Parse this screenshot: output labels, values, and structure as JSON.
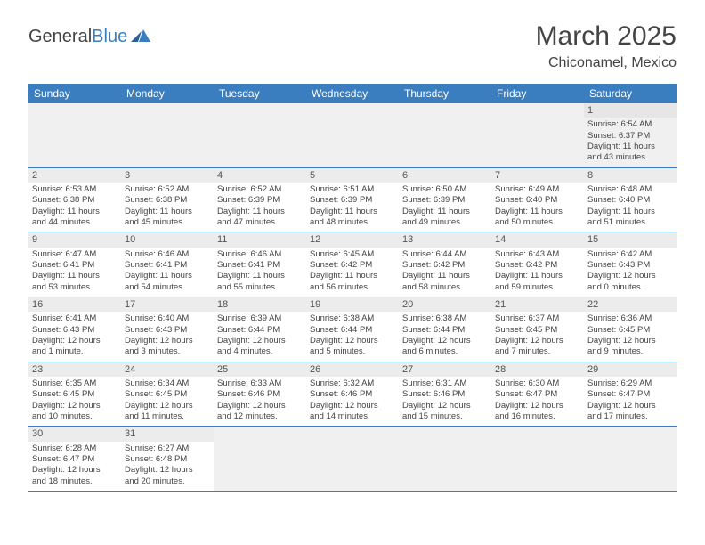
{
  "logo": {
    "part1": "General",
    "part2": "Blue"
  },
  "title": "March 2025",
  "subtitle": "Chiconamel, Mexico",
  "colors": {
    "header_bg": "#3b7ec0",
    "header_text": "#ffffff",
    "cell_border": "#3b7ec0",
    "alt_row_bg": "#f0f0f0",
    "text": "#444444"
  },
  "day_headers": [
    "Sunday",
    "Monday",
    "Tuesday",
    "Wednesday",
    "Thursday",
    "Friday",
    "Saturday"
  ],
  "weeks": [
    [
      null,
      null,
      null,
      null,
      null,
      null,
      {
        "n": "1",
        "sr": "Sunrise: 6:54 AM",
        "ss": "Sunset: 6:37 PM",
        "d1": "Daylight: 11 hours",
        "d2": "and 43 minutes."
      }
    ],
    [
      {
        "n": "2",
        "sr": "Sunrise: 6:53 AM",
        "ss": "Sunset: 6:38 PM",
        "d1": "Daylight: 11 hours",
        "d2": "and 44 minutes."
      },
      {
        "n": "3",
        "sr": "Sunrise: 6:52 AM",
        "ss": "Sunset: 6:38 PM",
        "d1": "Daylight: 11 hours",
        "d2": "and 45 minutes."
      },
      {
        "n": "4",
        "sr": "Sunrise: 6:52 AM",
        "ss": "Sunset: 6:39 PM",
        "d1": "Daylight: 11 hours",
        "d2": "and 47 minutes."
      },
      {
        "n": "5",
        "sr": "Sunrise: 6:51 AM",
        "ss": "Sunset: 6:39 PM",
        "d1": "Daylight: 11 hours",
        "d2": "and 48 minutes."
      },
      {
        "n": "6",
        "sr": "Sunrise: 6:50 AM",
        "ss": "Sunset: 6:39 PM",
        "d1": "Daylight: 11 hours",
        "d2": "and 49 minutes."
      },
      {
        "n": "7",
        "sr": "Sunrise: 6:49 AM",
        "ss": "Sunset: 6:40 PM",
        "d1": "Daylight: 11 hours",
        "d2": "and 50 minutes."
      },
      {
        "n": "8",
        "sr": "Sunrise: 6:48 AM",
        "ss": "Sunset: 6:40 PM",
        "d1": "Daylight: 11 hours",
        "d2": "and 51 minutes."
      }
    ],
    [
      {
        "n": "9",
        "sr": "Sunrise: 6:47 AM",
        "ss": "Sunset: 6:41 PM",
        "d1": "Daylight: 11 hours",
        "d2": "and 53 minutes."
      },
      {
        "n": "10",
        "sr": "Sunrise: 6:46 AM",
        "ss": "Sunset: 6:41 PM",
        "d1": "Daylight: 11 hours",
        "d2": "and 54 minutes."
      },
      {
        "n": "11",
        "sr": "Sunrise: 6:46 AM",
        "ss": "Sunset: 6:41 PM",
        "d1": "Daylight: 11 hours",
        "d2": "and 55 minutes."
      },
      {
        "n": "12",
        "sr": "Sunrise: 6:45 AM",
        "ss": "Sunset: 6:42 PM",
        "d1": "Daylight: 11 hours",
        "d2": "and 56 minutes."
      },
      {
        "n": "13",
        "sr": "Sunrise: 6:44 AM",
        "ss": "Sunset: 6:42 PM",
        "d1": "Daylight: 11 hours",
        "d2": "and 58 minutes."
      },
      {
        "n": "14",
        "sr": "Sunrise: 6:43 AM",
        "ss": "Sunset: 6:42 PM",
        "d1": "Daylight: 11 hours",
        "d2": "and 59 minutes."
      },
      {
        "n": "15",
        "sr": "Sunrise: 6:42 AM",
        "ss": "Sunset: 6:43 PM",
        "d1": "Daylight: 12 hours",
        "d2": "and 0 minutes."
      }
    ],
    [
      {
        "n": "16",
        "sr": "Sunrise: 6:41 AM",
        "ss": "Sunset: 6:43 PM",
        "d1": "Daylight: 12 hours",
        "d2": "and 1 minute."
      },
      {
        "n": "17",
        "sr": "Sunrise: 6:40 AM",
        "ss": "Sunset: 6:43 PM",
        "d1": "Daylight: 12 hours",
        "d2": "and 3 minutes."
      },
      {
        "n": "18",
        "sr": "Sunrise: 6:39 AM",
        "ss": "Sunset: 6:44 PM",
        "d1": "Daylight: 12 hours",
        "d2": "and 4 minutes."
      },
      {
        "n": "19",
        "sr": "Sunrise: 6:38 AM",
        "ss": "Sunset: 6:44 PM",
        "d1": "Daylight: 12 hours",
        "d2": "and 5 minutes."
      },
      {
        "n": "20",
        "sr": "Sunrise: 6:38 AM",
        "ss": "Sunset: 6:44 PM",
        "d1": "Daylight: 12 hours",
        "d2": "and 6 minutes."
      },
      {
        "n": "21",
        "sr": "Sunrise: 6:37 AM",
        "ss": "Sunset: 6:45 PM",
        "d1": "Daylight: 12 hours",
        "d2": "and 7 minutes."
      },
      {
        "n": "22",
        "sr": "Sunrise: 6:36 AM",
        "ss": "Sunset: 6:45 PM",
        "d1": "Daylight: 12 hours",
        "d2": "and 9 minutes."
      }
    ],
    [
      {
        "n": "23",
        "sr": "Sunrise: 6:35 AM",
        "ss": "Sunset: 6:45 PM",
        "d1": "Daylight: 12 hours",
        "d2": "and 10 minutes."
      },
      {
        "n": "24",
        "sr": "Sunrise: 6:34 AM",
        "ss": "Sunset: 6:45 PM",
        "d1": "Daylight: 12 hours",
        "d2": "and 11 minutes."
      },
      {
        "n": "25",
        "sr": "Sunrise: 6:33 AM",
        "ss": "Sunset: 6:46 PM",
        "d1": "Daylight: 12 hours",
        "d2": "and 12 minutes."
      },
      {
        "n": "26",
        "sr": "Sunrise: 6:32 AM",
        "ss": "Sunset: 6:46 PM",
        "d1": "Daylight: 12 hours",
        "d2": "and 14 minutes."
      },
      {
        "n": "27",
        "sr": "Sunrise: 6:31 AM",
        "ss": "Sunset: 6:46 PM",
        "d1": "Daylight: 12 hours",
        "d2": "and 15 minutes."
      },
      {
        "n": "28",
        "sr": "Sunrise: 6:30 AM",
        "ss": "Sunset: 6:47 PM",
        "d1": "Daylight: 12 hours",
        "d2": "and 16 minutes."
      },
      {
        "n": "29",
        "sr": "Sunrise: 6:29 AM",
        "ss": "Sunset: 6:47 PM",
        "d1": "Daylight: 12 hours",
        "d2": "and 17 minutes."
      }
    ],
    [
      {
        "n": "30",
        "sr": "Sunrise: 6:28 AM",
        "ss": "Sunset: 6:47 PM",
        "d1": "Daylight: 12 hours",
        "d2": "and 18 minutes."
      },
      {
        "n": "31",
        "sr": "Sunrise: 6:27 AM",
        "ss": "Sunset: 6:48 PM",
        "d1": "Daylight: 12 hours",
        "d2": "and 20 minutes."
      },
      null,
      null,
      null,
      null,
      null
    ]
  ]
}
